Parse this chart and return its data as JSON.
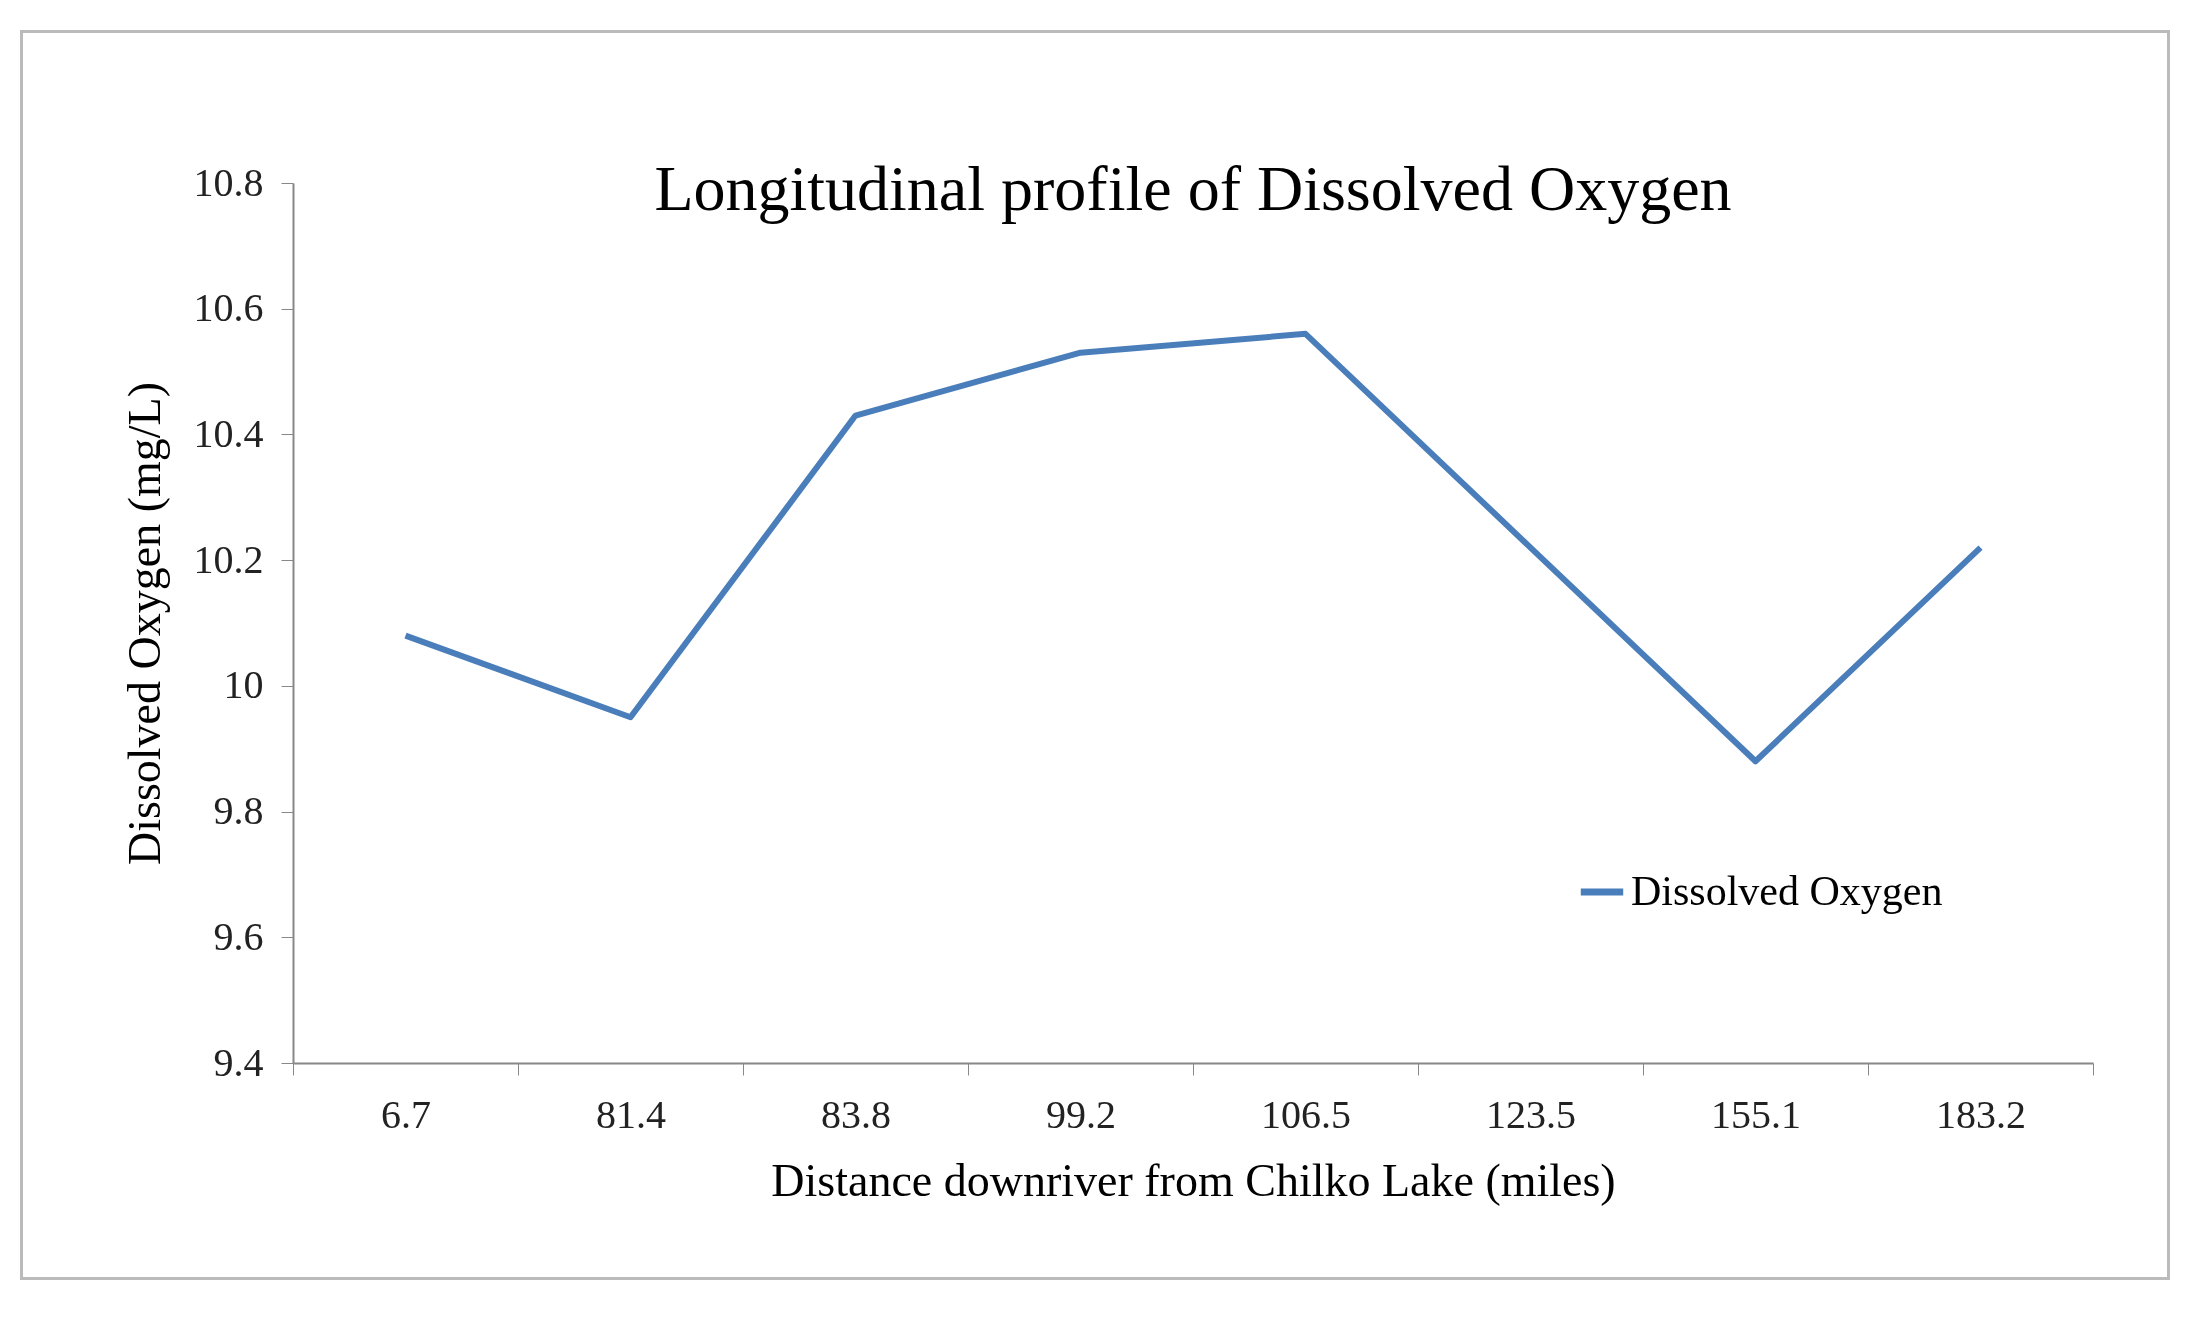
{
  "chart_data": {
    "type": "line",
    "title": "Longitudinal profile of Dissolved Oxygen",
    "xlabel": "Distance downriver from Chilko Lake (miles)",
    "ylabel": "Dissolved Oxygen (mg/L)",
    "categories": [
      "6.7",
      "81.4",
      "83.8",
      "99.2",
      "106.5",
      "123.5",
      "155.1",
      "183.2"
    ],
    "series": [
      {
        "name": "Dissolved Oxygen",
        "color": "#4a7ebb",
        "values": [
          10.08,
          9.95,
          10.43,
          10.53,
          10.56,
          10.22,
          9.88,
          10.22
        ]
      }
    ],
    "ylim": [
      9.4,
      10.8
    ],
    "yticks": [
      9.4,
      9.6,
      9.8,
      10,
      10.2,
      10.4,
      10.6,
      10.8
    ],
    "grid": false,
    "legend": "bottom right",
    "marker": "none"
  }
}
